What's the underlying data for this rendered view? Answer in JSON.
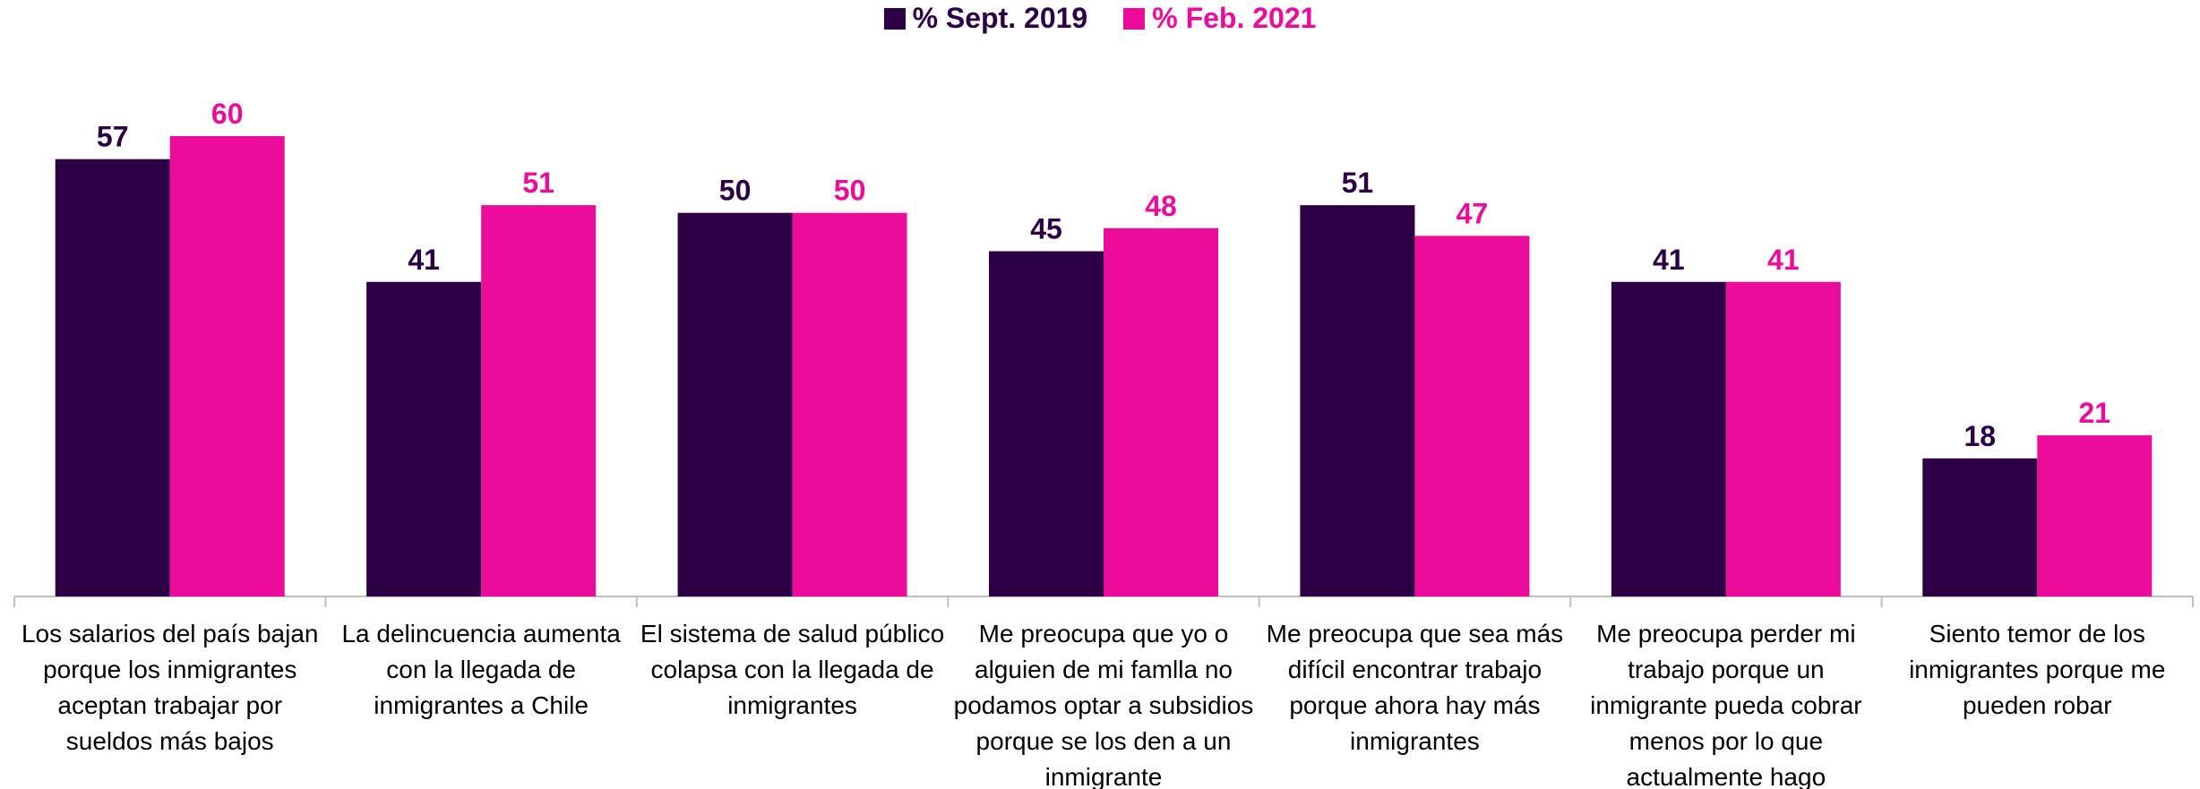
{
  "chart_data": {
    "type": "bar",
    "categories": [
      "Los salarios del país bajan porque los inmigrantes aceptan trabajar por sueldos más bajos",
      "La delincuencia aumenta con la llegada de inmigrantes a Chile",
      "El sistema de salud público colapsa con la llegada de inmigrantes",
      "Me preocupa que yo o alguien de mi famlla no podamos optar a subsidios porque se los den a un inmigrante",
      "Me preocupa que sea más difícil encontrar trabajo porque ahora hay más inmigrantes",
      "Me preocupa perder mi trabajo porque un inmigrante pueda cobrar menos por lo que actualmente hago",
      "Siento temor de los inmigrantes porque me pueden robar"
    ],
    "series": [
      {
        "name": "% Sept. 2019",
        "color": "#2d0046",
        "values": [
          57,
          41,
          50,
          45,
          51,
          41,
          18
        ]
      },
      {
        "name": "% Feb. 2021",
        "color": "#ec0c9c",
        "values": [
          60,
          51,
          50,
          48,
          47,
          41,
          21
        ]
      }
    ],
    "ylim": [
      0,
      60
    ]
  }
}
